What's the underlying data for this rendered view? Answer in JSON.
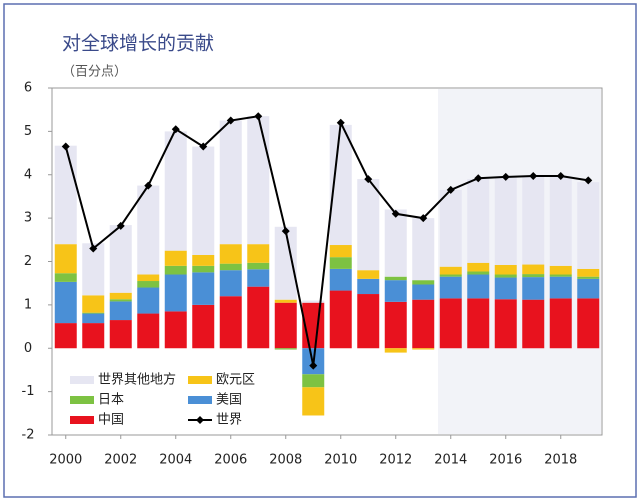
{
  "chart_data": {
    "type": "bar",
    "stacked": true,
    "title": "对全球增长的贡献",
    "subtitle": "（百分点）",
    "x": [
      2000,
      2001,
      2002,
      2003,
      2004,
      2005,
      2006,
      2007,
      2008,
      2009,
      2010,
      2011,
      2012,
      2013,
      2014,
      2015,
      2016,
      2017,
      2018,
      2019
    ],
    "xlim": [
      1999.5,
      2019.5
    ],
    "xticks": [
      2000,
      2002,
      2004,
      2006,
      2008,
      2010,
      2012,
      2014,
      2016,
      2018
    ],
    "ylim": [
      -2,
      6
    ],
    "yticks": [
      -2,
      -1,
      0,
      1,
      2,
      3,
      4,
      5,
      6
    ],
    "series": [
      {
        "name": "中国",
        "color": "#e8121e",
        "values": [
          0.58,
          0.58,
          0.65,
          0.8,
          0.85,
          1.0,
          1.2,
          1.42,
          1.05,
          1.05,
          1.33,
          1.25,
          1.07,
          1.12,
          1.15,
          1.15,
          1.13,
          1.12,
          1.15,
          1.15
        ]
      },
      {
        "name": "美国",
        "color": "#4a8fd6",
        "values": [
          0.95,
          0.22,
          0.43,
          0.6,
          0.85,
          0.75,
          0.6,
          0.4,
          0.0,
          -0.6,
          0.5,
          0.35,
          0.5,
          0.35,
          0.5,
          0.55,
          0.5,
          0.52,
          0.5,
          0.45
        ]
      },
      {
        "name": "日本",
        "color": "#7dc242",
        "values": [
          0.2,
          0.02,
          0.05,
          0.15,
          0.2,
          0.15,
          0.15,
          0.15,
          -0.03,
          -0.3,
          0.27,
          0.0,
          0.08,
          0.1,
          0.05,
          0.07,
          0.07,
          0.07,
          0.05,
          0.05
        ]
      },
      {
        "name": "欧元区",
        "color": "#f7c418",
        "values": [
          0.67,
          0.4,
          0.15,
          0.15,
          0.35,
          0.25,
          0.45,
          0.43,
          0.07,
          -0.65,
          0.28,
          0.2,
          -0.1,
          -0.03,
          0.18,
          0.2,
          0.22,
          0.22,
          0.2,
          0.18
        ]
      },
      {
        "name": "世界其他地方",
        "color": "#e6e6f2",
        "values": [
          2.27,
          1.2,
          1.56,
          2.05,
          2.75,
          2.5,
          2.85,
          2.95,
          1.68,
          0.05,
          2.77,
          2.1,
          1.55,
          1.43,
          1.77,
          1.93,
          2.03,
          2.05,
          2.05,
          2.0
        ]
      },
      {
        "name": "世界",
        "color": "#000000",
        "type": "line",
        "values": [
          4.65,
          2.3,
          2.82,
          3.75,
          5.05,
          4.65,
          5.25,
          5.35,
          2.7,
          -0.4,
          5.2,
          3.9,
          3.1,
          3.0,
          3.65,
          3.92,
          3.95,
          3.97,
          3.97,
          3.87
        ]
      }
    ]
  }
}
